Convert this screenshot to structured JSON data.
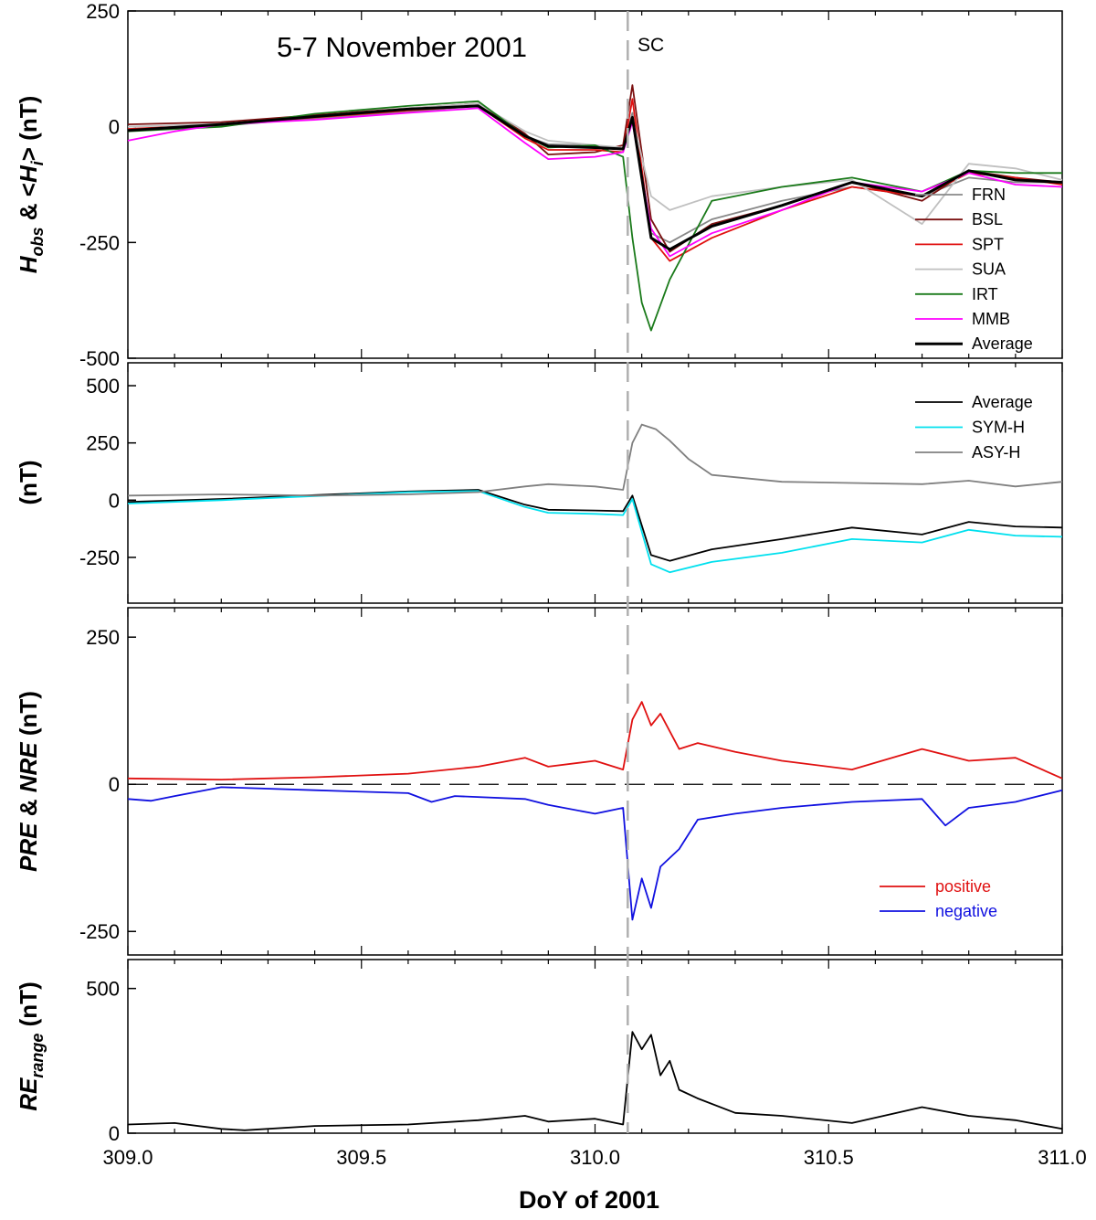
{
  "figure": {
    "title": "5-7 November 2001",
    "xlabel": "DoY of 2001",
    "x_ticks": [
      "309.0",
      "309.5",
      "310.0",
      "310.5",
      "311.0"
    ],
    "sc_label": "SC",
    "sc_doy": 310.07
  },
  "chart_data": [
    {
      "type": "line",
      "ylabel": "H_obs & <H_i> (nT)",
      "ylim": [
        -500,
        250
      ],
      "yticks": [
        250,
        0,
        -250,
        -500
      ],
      "ytick_labels": [
        "250",
        "0",
        "-250",
        "-500"
      ],
      "legend_position": "bottom-right",
      "series": [
        {
          "name": "FRN",
          "color": "#888888",
          "x": [
            309.0,
            309.2,
            309.4,
            309.6,
            309.75,
            309.85,
            309.9,
            310.0,
            310.06,
            310.08,
            310.12,
            310.16,
            310.25,
            310.4,
            310.55,
            310.7,
            310.8,
            310.9,
            311.0
          ],
          "values": [
            -5,
            2,
            18,
            32,
            45,
            -20,
            -38,
            -40,
            -48,
            30,
            -230,
            -250,
            -200,
            -160,
            -130,
            -150,
            -110,
            -120,
            -120
          ]
        },
        {
          "name": "BSL",
          "color": "#7b1010",
          "x": [
            309.0,
            309.2,
            309.4,
            309.6,
            309.75,
            309.85,
            309.9,
            310.0,
            310.06,
            310.08,
            310.12,
            310.16,
            310.25,
            310.4,
            310.55,
            310.7,
            310.8,
            310.9,
            311.0
          ],
          "values": [
            5,
            10,
            25,
            40,
            50,
            -15,
            -60,
            -55,
            -40,
            90,
            -200,
            -270,
            -210,
            -170,
            -120,
            -160,
            -95,
            -110,
            -120
          ]
        },
        {
          "name": "SPT",
          "color": "#e01010",
          "x": [
            309.0,
            309.2,
            309.4,
            309.6,
            309.75,
            309.85,
            309.9,
            310.0,
            310.06,
            310.08,
            310.12,
            310.16,
            310.25,
            310.4,
            310.55,
            310.7,
            310.8,
            310.9,
            311.0
          ],
          "values": [
            -5,
            5,
            20,
            35,
            45,
            -25,
            -50,
            -50,
            -55,
            60,
            -240,
            -290,
            -240,
            -180,
            -130,
            -150,
            -100,
            -110,
            -125
          ]
        },
        {
          "name": "SUA",
          "color": "#c0c0c0",
          "x": [
            309.0,
            309.2,
            309.4,
            309.6,
            309.75,
            309.85,
            309.9,
            310.0,
            310.06,
            310.08,
            310.12,
            310.16,
            310.25,
            310.4,
            310.55,
            310.7,
            310.8,
            310.9,
            311.0
          ],
          "values": [
            0,
            6,
            22,
            40,
            50,
            -10,
            -30,
            -40,
            -45,
            20,
            -150,
            -180,
            -150,
            -130,
            -115,
            -210,
            -80,
            -90,
            -115
          ]
        },
        {
          "name": "IRT",
          "color": "#1a7a1a",
          "x": [
            309.0,
            309.2,
            309.4,
            309.6,
            309.75,
            309.85,
            309.9,
            310.0,
            310.06,
            310.08,
            310.1,
            310.12,
            310.16,
            310.25,
            310.4,
            310.55,
            310.7,
            310.8,
            310.9,
            311.0
          ],
          "values": [
            -10,
            0,
            28,
            45,
            55,
            -20,
            -45,
            -40,
            -65,
            -240,
            -380,
            -440,
            -330,
            -160,
            -130,
            -110,
            -140,
            -95,
            -100,
            -100
          ]
        },
        {
          "name": "MMB",
          "color": "#ff00ff",
          "x": [
            309.0,
            309.1,
            309.2,
            309.4,
            309.6,
            309.75,
            309.85,
            309.9,
            310.0,
            310.06,
            310.08,
            310.12,
            310.16,
            310.25,
            310.4,
            310.55,
            310.7,
            310.8,
            310.9,
            311.0
          ],
          "values": [
            -30,
            -10,
            5,
            15,
            30,
            40,
            -35,
            -70,
            -65,
            -55,
            10,
            -220,
            -280,
            -230,
            -180,
            -120,
            -140,
            -100,
            -125,
            -130
          ]
        },
        {
          "name": "Average",
          "color": "#000000",
          "x": [
            309.0,
            309.2,
            309.4,
            309.6,
            309.75,
            309.85,
            309.9,
            310.0,
            310.06,
            310.08,
            310.12,
            310.16,
            310.25,
            310.4,
            310.55,
            310.7,
            310.8,
            310.9,
            311.0
          ],
          "values": [
            -8,
            5,
            22,
            38,
            45,
            -20,
            -42,
            -45,
            -48,
            20,
            -240,
            -265,
            -215,
            -170,
            -120,
            -150,
            -95,
            -115,
            -120
          ]
        }
      ]
    },
    {
      "type": "line",
      "ylabel": "(nT)",
      "ylim": [
        -450,
        600
      ],
      "yticks": [
        500,
        250,
        0,
        -250
      ],
      "ytick_labels": [
        "500",
        "250",
        "0",
        "-250"
      ],
      "legend_position": "top-right",
      "series": [
        {
          "name": "Average",
          "color": "#000000",
          "x": [
            309.0,
            309.2,
            309.4,
            309.6,
            309.75,
            309.85,
            309.9,
            310.0,
            310.06,
            310.08,
            310.12,
            310.16,
            310.25,
            310.4,
            310.55,
            310.7,
            310.8,
            310.9,
            311.0
          ],
          "values": [
            -8,
            5,
            22,
            38,
            45,
            -20,
            -42,
            -45,
            -48,
            20,
            -240,
            -265,
            -215,
            -170,
            -120,
            -150,
            -95,
            -115,
            -120
          ]
        },
        {
          "name": "SYM-H",
          "color": "#00e0ee",
          "x": [
            309.0,
            309.2,
            309.4,
            309.6,
            309.75,
            309.85,
            309.9,
            310.0,
            310.06,
            310.08,
            310.12,
            310.16,
            310.25,
            310.4,
            310.55,
            310.7,
            310.8,
            310.9,
            311.0
          ],
          "values": [
            -15,
            0,
            18,
            35,
            40,
            -30,
            -55,
            -60,
            -65,
            5,
            -280,
            -315,
            -270,
            -230,
            -170,
            -185,
            -130,
            -155,
            -160
          ]
        },
        {
          "name": "ASY-H",
          "color": "#808080",
          "x": [
            309.0,
            309.2,
            309.4,
            309.6,
            309.75,
            309.85,
            309.9,
            310.0,
            310.06,
            310.08,
            310.1,
            310.13,
            310.16,
            310.2,
            310.25,
            310.4,
            310.55,
            310.7,
            310.8,
            310.9,
            311.0
          ],
          "values": [
            20,
            25,
            20,
            25,
            35,
            60,
            70,
            60,
            45,
            250,
            330,
            310,
            260,
            180,
            110,
            80,
            75,
            70,
            85,
            60,
            80
          ]
        }
      ]
    },
    {
      "type": "line",
      "ylabel": "PRE & NRE (nT)",
      "ylim": [
        -290,
        300
      ],
      "yticks": [
        250,
        0,
        -250
      ],
      "ytick_labels": [
        "250",
        "0",
        "-250"
      ],
      "legend_position": "bottom-right",
      "series": [
        {
          "name": "positive",
          "color": "#e01010",
          "x": [
            309.0,
            309.2,
            309.4,
            309.6,
            309.75,
            309.85,
            309.9,
            310.0,
            310.06,
            310.08,
            310.1,
            310.12,
            310.14,
            310.18,
            310.22,
            310.3,
            310.4,
            310.55,
            310.7,
            310.8,
            310.9,
            311.0
          ],
          "values": [
            10,
            8,
            12,
            18,
            30,
            45,
            30,
            40,
            25,
            110,
            140,
            100,
            120,
            60,
            70,
            55,
            40,
            25,
            60,
            40,
            45,
            10
          ]
        },
        {
          "name": "negative",
          "color": "#1010e0",
          "x": [
            309.0,
            309.05,
            309.1,
            309.2,
            309.4,
            309.6,
            309.65,
            309.7,
            309.85,
            309.9,
            310.0,
            310.06,
            310.08,
            310.1,
            310.12,
            310.14,
            310.18,
            310.22,
            310.3,
            310.4,
            310.55,
            310.7,
            310.75,
            310.8,
            310.9,
            311.0
          ],
          "values": [
            -25,
            -28,
            -20,
            -5,
            -10,
            -15,
            -30,
            -20,
            -25,
            -35,
            -50,
            -40,
            -230,
            -160,
            -210,
            -140,
            -110,
            -60,
            -50,
            -40,
            -30,
            -25,
            -70,
            -40,
            -30,
            -10
          ]
        }
      ]
    },
    {
      "type": "line",
      "ylabel": "RE_range (nT)",
      "ylim": [
        0,
        600
      ],
      "yticks": [
        500,
        0
      ],
      "ytick_labels": [
        "500",
        "0"
      ],
      "series": [
        {
          "name": "",
          "color": "#000000",
          "x": [
            309.0,
            309.1,
            309.2,
            309.25,
            309.4,
            309.6,
            309.75,
            309.85,
            309.9,
            310.0,
            310.06,
            310.08,
            310.1,
            310.12,
            310.14,
            310.16,
            310.18,
            310.22,
            310.3,
            310.4,
            310.55,
            310.7,
            310.8,
            310.9,
            311.0
          ],
          "values": [
            30,
            35,
            15,
            10,
            25,
            30,
            45,
            60,
            40,
            50,
            30,
            350,
            290,
            340,
            200,
            250,
            150,
            120,
            70,
            60,
            35,
            90,
            60,
            45,
            15
          ]
        }
      ]
    }
  ]
}
